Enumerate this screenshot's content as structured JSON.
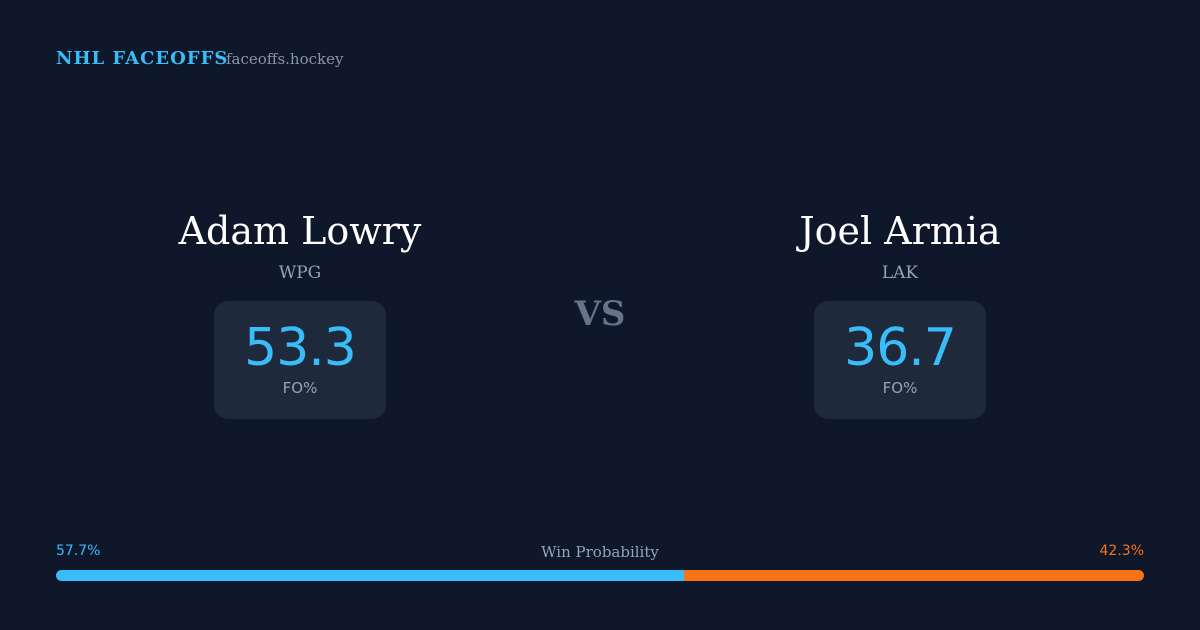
{
  "header": {
    "title": "NHL FACEOFFS",
    "site": "faceoffs.hockey"
  },
  "players": [
    {
      "name": "Adam Lowry",
      "team": "WPG",
      "stat_value": 53.3,
      "stat_label": "FO%"
    },
    {
      "name": "Joel Armia",
      "team": "LAK",
      "stat_value": 36.7,
      "stat_label": "FO%"
    }
  ],
  "vs": "VS",
  "win_probability": {
    "label": "Win Probability",
    "home": {
      "value": 57.7,
      "label": "57.7%",
      "color": "#38bdf8"
    },
    "away": {
      "value": 42.3,
      "label": "42.3%",
      "color": "#f97316"
    }
  }
}
